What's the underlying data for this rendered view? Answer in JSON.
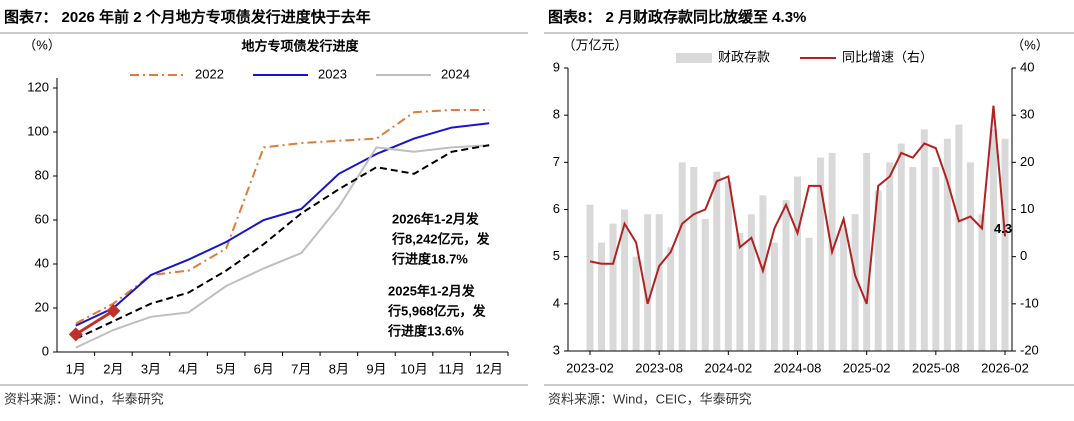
{
  "chart_data": [
    {
      "type": "line",
      "title": "图表7： 2026 年前 2 个月地方专项债发行进度快于去年",
      "subtitle": "地方专项债发行进度",
      "y_label": "（%）",
      "source": "资料来源：Wind，华泰研究",
      "categories": [
        "1月",
        "2月",
        "3月",
        "4月",
        "5月",
        "6月",
        "7月",
        "8月",
        "9月",
        "10月",
        "11月",
        "12月"
      ],
      "ylim": [
        0,
        120
      ],
      "yticks": [
        0,
        20,
        40,
        60,
        80,
        100,
        120
      ],
      "series": [
        {
          "name": "2022",
          "color": "#e07b39",
          "dash": "dashdot",
          "values": [
            13,
            22,
            35,
            37,
            47,
            93,
            95,
            96,
            97,
            109,
            110,
            110
          ]
        },
        {
          "name": "2023",
          "color": "#1515d0",
          "dash": "solid",
          "values": [
            12,
            20,
            35,
            42,
            50,
            60,
            65,
            81,
            90,
            97,
            102,
            104
          ]
        },
        {
          "name": "2024",
          "color": "#bfbfbf",
          "dash": "solid",
          "values": [
            2,
            10,
            16,
            18,
            30,
            38,
            45,
            66,
            93,
            91,
            93,
            94
          ]
        },
        {
          "color": "#000000",
          "dash": "dashed",
          "values": [
            6,
            14,
            22,
            27,
            37,
            49,
            63,
            74,
            84,
            81,
            91,
            94
          ]
        },
        {
          "color": "#c0302a",
          "dash": "solid",
          "marker": "diamond",
          "values": [
            8,
            18.7,
            null,
            null,
            null,
            null,
            null,
            null,
            null,
            null,
            null,
            null
          ]
        }
      ],
      "annotations": [
        {
          "color": "#c0302a",
          "lines": [
            "2026年1-2月发",
            "行8,242亿元，发",
            "行进度18.7%"
          ]
        },
        {
          "color": "#000000",
          "lines": [
            "2025年1-2月发",
            "行5,968亿元，发",
            "行进度13.6%"
          ]
        }
      ]
    },
    {
      "type": "bar_line",
      "title": "图表8： 2 月财政存款同比放缓至 4.3%",
      "y_label": "（万亿元）",
      "y2_label": "（%）",
      "source": "资料来源：Wind，CEIC，华泰研究",
      "categories": [
        "2023-02",
        null,
        null,
        null,
        null,
        null,
        "2023-08",
        null,
        null,
        null,
        null,
        null,
        "2024-02",
        null,
        null,
        null,
        null,
        null,
        "2024-08",
        null,
        null,
        null,
        null,
        null,
        "2025-02",
        null,
        null,
        null,
        null,
        null,
        "2025-08",
        null,
        null,
        null,
        null,
        null,
        "2026-02"
      ],
      "ylim": [
        3,
        9
      ],
      "yticks": [
        3,
        4,
        5,
        6,
        7,
        8,
        9
      ],
      "y2lim": [
        -20,
        40
      ],
      "y2ticks": [
        -20,
        -10,
        0,
        10,
        20,
        30,
        40
      ],
      "series": [
        {
          "name": "财政存款",
          "color": "#d9d9d9",
          "kind": "bar",
          "values": [
            6.1,
            5.3,
            5.7,
            6.0,
            5.0,
            5.9,
            5.9,
            5.2,
            7.0,
            6.9,
            5.8,
            6.8,
            6.6,
            5.5,
            5.9,
            6.3,
            5.3,
            6.2,
            6.7,
            5.4,
            7.1,
            7.2,
            5.6,
            5.9,
            7.2,
            6.4,
            7.0,
            7.4,
            6.9,
            7.7,
            6.9,
            7.5,
            7.8,
            7.0,
            5.9,
            7.7,
            7.5
          ]
        },
        {
          "name": "同比增速（右）",
          "color": "#b22222",
          "kind": "line",
          "axis": "y2",
          "values": [
            -1,
            -1.5,
            -1.5,
            7,
            3,
            -10,
            -2,
            1,
            7,
            9,
            10,
            16,
            17,
            2,
            4,
            -3,
            6,
            11,
            5,
            15,
            15,
            1,
            8,
            -4,
            -10,
            15,
            17,
            22,
            21,
            24,
            23,
            16,
            7.5,
            8.5,
            6,
            32,
            4.3
          ]
        }
      ]
    }
  ]
}
